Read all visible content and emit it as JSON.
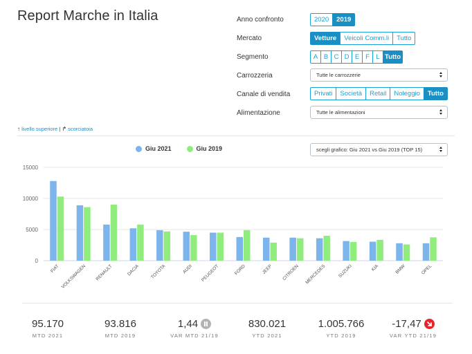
{
  "page_title": "Report Marche in Italia",
  "filters": {
    "anno_confronto": {
      "label": "Anno confronto",
      "options": [
        "2020",
        "2019"
      ],
      "active": "2019"
    },
    "mercato": {
      "label": "Mercato",
      "options": [
        "Vetture",
        "Veicoli Comm.li",
        "Tutto"
      ],
      "active": "Vetture"
    },
    "segmento": {
      "label": "Segmento",
      "options": [
        "A",
        "B",
        "C",
        "D",
        "E",
        "F",
        "L",
        "Tutto"
      ],
      "active": "Tutto"
    },
    "carrozzeria": {
      "label": "Carrozzeria",
      "value": "Tutte le carrozzerie"
    },
    "canale_vendita": {
      "label": "Canale di vendita",
      "options": [
        "Privati",
        "Società",
        "Retail",
        "Noleggio",
        "Tutto"
      ],
      "active": "Tutto"
    },
    "alimentazione": {
      "label": "Alimentazione",
      "value": "Tutte le alimentazioni"
    }
  },
  "nav": {
    "up_icon": "arrow-up-icon",
    "up_label": "livello superiore",
    "separator": "|",
    "share_icon": "share-arrow-icon",
    "shortcut_label": "scorciatoia"
  },
  "chart_selector": {
    "value": "scegli grafico: Giu 2021 vs Giu 2019 (TOP 15)"
  },
  "chart_data": {
    "type": "bar",
    "title": "",
    "xlabel": "",
    "ylabel": "",
    "ylim": [
      0,
      15000
    ],
    "yticks": [
      0,
      5000,
      10000,
      15000
    ],
    "grid": true,
    "legend_position": "top-left",
    "categories": [
      "FIAT",
      "VOLKSWAGEN",
      "RENAULT",
      "DACIA",
      "TOYOTA",
      "AUDI",
      "PEUGEOT",
      "FORD",
      "JEEP",
      "CITROEN",
      "MERCEDES",
      "SUZUKI",
      "KIA",
      "BMW",
      "OPEL"
    ],
    "series": [
      {
        "name": "Giu 2021",
        "color": "#7cb5ec",
        "values": [
          12800,
          8900,
          5800,
          5200,
          4900,
          4650,
          4500,
          3800,
          3700,
          3700,
          3600,
          3150,
          3050,
          2800,
          2800
        ]
      },
      {
        "name": "Giu 2019",
        "color": "#90ed7d",
        "values": [
          10300,
          8600,
          9000,
          5800,
          4700,
          4100,
          4500,
          4900,
          2900,
          3600,
          4000,
          3000,
          3350,
          2600,
          3750
        ]
      }
    ]
  },
  "stats": [
    {
      "value": "95.170",
      "label": "MTD 2021"
    },
    {
      "value": "93.816",
      "label": "MTD 2019"
    },
    {
      "value": "1,44",
      "label": "VAR MTD 21/19",
      "icon": "pause-icon",
      "icon_color": "#b3b3b3"
    },
    {
      "value": "830.021",
      "label": "YTD 2021"
    },
    {
      "value": "1.005.766",
      "label": "YTD 2019"
    },
    {
      "value": "-17,47",
      "label": "VAR YTD 21/19",
      "icon": "down-arrow-icon",
      "icon_color": "#e5262b"
    }
  ]
}
